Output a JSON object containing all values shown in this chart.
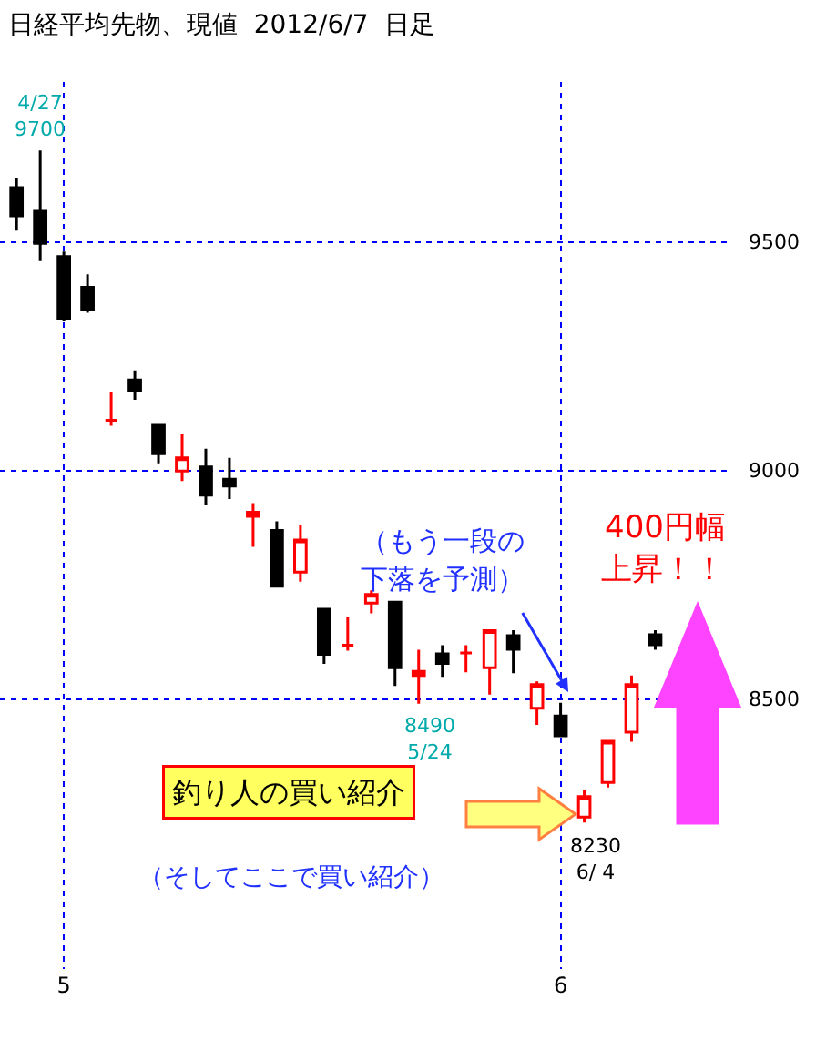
{
  "chart_data": {
    "type": "candlestick",
    "title": "日経平均先物、現値  2012/6/7  日足",
    "categories": [
      null,
      null,
      "5",
      null,
      null,
      null,
      null,
      null,
      null,
      null,
      null,
      null,
      null,
      null,
      null,
      null,
      null,
      null,
      null,
      null,
      null,
      null,
      null,
      "6",
      null,
      null,
      null,
      null
    ],
    "ohlc": [
      [
        9619,
        9639,
        9525,
        9557
      ],
      [
        9567,
        9700,
        9458,
        9497
      ],
      [
        9468,
        9479,
        9327,
        9333
      ],
      [
        9401,
        9429,
        9345,
        9353
      ],
      [
        9110,
        9171,
        9098,
        9110
      ],
      [
        9198,
        9219,
        9155,
        9176
      ],
      [
        9099,
        9099,
        9016,
        9037
      ],
      [
        8999,
        9079,
        8977,
        9028
      ],
      [
        9008,
        9048,
        8926,
        8946
      ],
      [
        8981,
        9028,
        8938,
        8966
      ],
      [
        8900,
        8929,
        8833,
        8909
      ],
      [
        8869,
        8889,
        8747,
        8747
      ],
      [
        8778,
        8880,
        8757,
        8848
      ],
      [
        8697,
        8697,
        8577,
        8598
      ],
      [
        8618,
        8679,
        8606,
        8618
      ],
      [
        8710,
        8738,
        8688,
        8729
      ],
      [
        8712,
        8712,
        8529,
        8569
      ],
      [
        8552,
        8608,
        8490,
        8561
      ],
      [
        8599,
        8618,
        8549,
        8578
      ],
      [
        8601,
        8618,
        8559,
        8601
      ],
      [
        8569,
        8650,
        8510,
        8650
      ],
      [
        8639,
        8651,
        8557,
        8609
      ],
      [
        8480,
        8539,
        8444,
        8532
      ],
      [
        8463,
        8492,
        8420,
        8420
      ],
      [
        8242,
        8302,
        8230,
        8287
      ],
      [
        8318,
        8408,
        8307,
        8408
      ],
      [
        8428,
        8552,
        8407,
        8532
      ],
      [
        8641,
        8651,
        8608,
        8619
      ]
    ],
    "colors": [
      "#000000",
      "#000000",
      "#000000",
      "#000000",
      "#ff0000",
      "#000000",
      "#000000",
      "#ff0000",
      "#000000",
      "#000000",
      "#ff0000",
      "#000000",
      "#ff0000",
      "#000000",
      "#ff0000",
      "#ff0000",
      "#000000",
      "#ff0000",
      "#000000",
      "#ff0000",
      "#ff0000",
      "#000000",
      "#ff0000",
      "#000000",
      "#ff0000",
      "#ff0000",
      "#ff0000",
      "#000000"
    ],
    "ylim": [
      7910,
      9850
    ],
    "yticks": [
      8500,
      9000,
      9500
    ],
    "grid": true,
    "annotations": [
      "4/27\n9700",
      "8490\n5/24",
      "8230\n6/ 4",
      "（もう一段の",
      "下落を予測）",
      "400円幅",
      "上昇！！",
      "釣り人の買い紹介",
      "（そしてここで買い紹介）"
    ]
  }
}
